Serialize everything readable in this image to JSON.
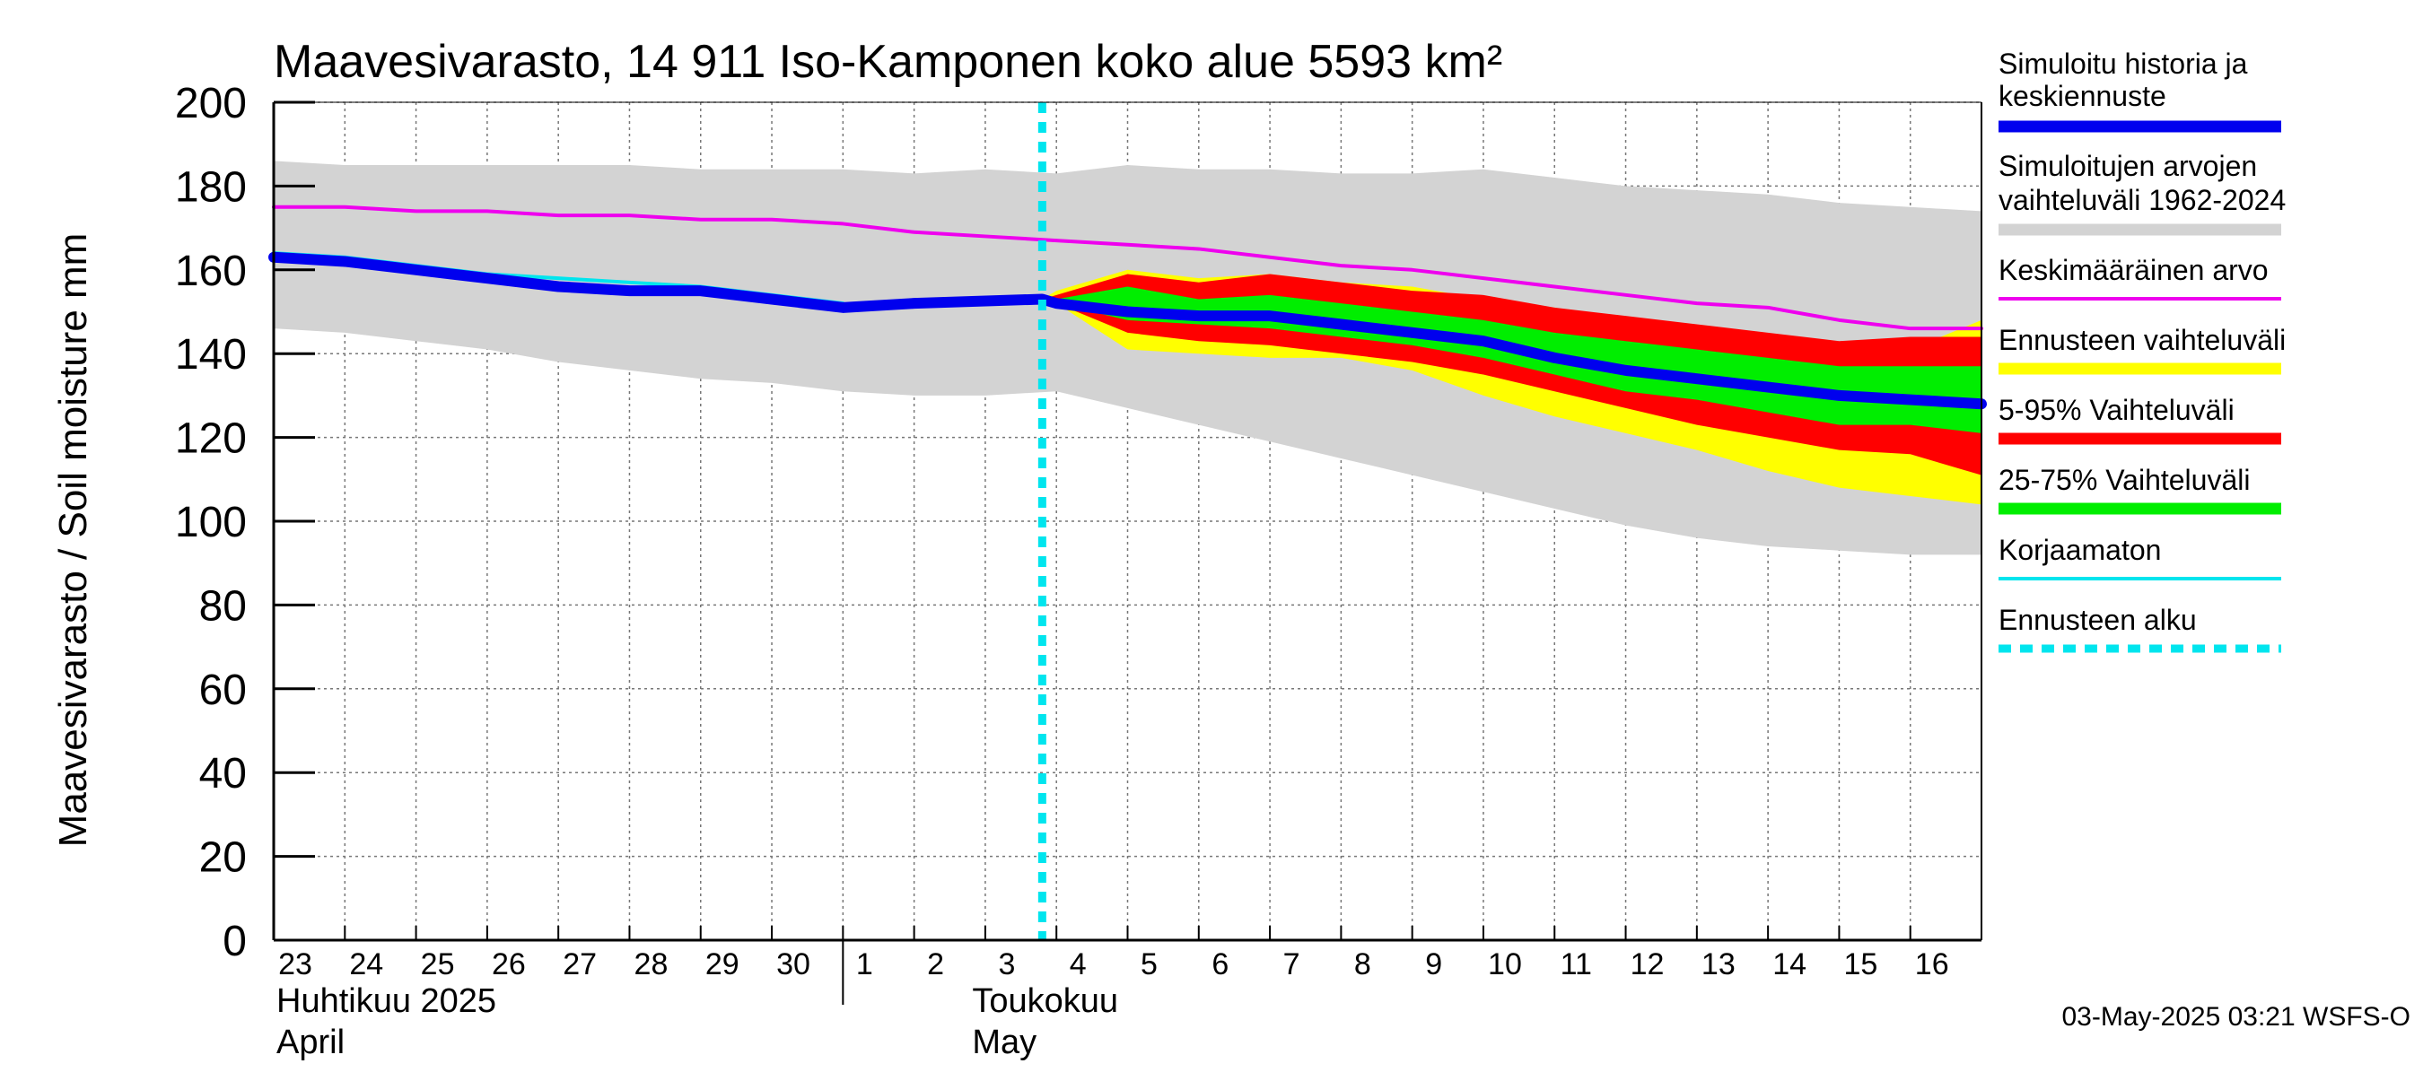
{
  "chart_data": {
    "type": "area",
    "title": "Maavesivarasto, 14 911 Iso-Kamponen koko alue 5593 km²",
    "ylabel": "Maavesivarasto / Soil moisture   mm",
    "ylim": [
      0,
      200
    ],
    "yticks": [
      0,
      20,
      40,
      60,
      80,
      100,
      120,
      140,
      160,
      180,
      200
    ],
    "x_start": "2025-04-23",
    "x_days": [
      0,
      24
    ],
    "day_labels": [
      "23",
      "24",
      "25",
      "26",
      "27",
      "28",
      "29",
      "30",
      "1",
      "2",
      "3",
      "4",
      "5",
      "6",
      "7",
      "8",
      "9",
      "10",
      "11",
      "12",
      "13",
      "14",
      "15",
      "16"
    ],
    "month_labels": [
      {
        "line1": "Huhtikuu  2025",
        "line2": "April"
      },
      {
        "line1": "Toukokuu",
        "line2": "May"
      }
    ],
    "month_separator_day": 8,
    "forecast_start_day": 10.8,
    "grid": true,
    "series": [
      {
        "name": "Simuloitujen arvojen vaihteluväli 1962-2024",
        "kind": "band",
        "color": "#d3d3d3",
        "x": [
          0,
          1,
          2,
          3,
          4,
          5,
          6,
          7,
          8,
          9,
          10,
          11,
          12,
          13,
          14,
          15,
          16,
          17,
          18,
          19,
          20,
          21,
          22,
          23,
          24
        ],
        "upper": [
          186,
          185,
          185,
          185,
          185,
          185,
          184,
          184,
          184,
          183,
          184,
          183,
          185,
          184,
          184,
          183,
          183,
          184,
          182,
          180,
          179,
          178,
          176,
          175,
          174
        ],
        "lower": [
          146,
          145,
          143,
          141,
          138,
          136,
          134,
          133,
          131,
          130,
          130,
          131,
          127,
          123,
          119,
          115,
          111,
          107,
          103,
          99,
          96,
          94,
          93,
          92,
          92
        ]
      },
      {
        "name": "Ennusteen vaihteluväli",
        "kind": "band",
        "color": "#ffff00",
        "x": [
          10.8,
          11,
          12,
          13,
          14,
          15,
          16,
          17,
          18,
          19,
          20,
          21,
          22,
          23,
          24
        ],
        "upper": [
          153,
          155,
          160,
          158,
          159,
          157,
          156,
          153,
          151,
          148,
          145,
          142,
          140,
          141,
          148
        ],
        "lower": [
          153,
          152,
          141,
          140,
          139,
          139,
          136,
          130,
          125,
          121,
          117,
          112,
          108,
          106,
          104
        ]
      },
      {
        "name": "5-95% Vaihteluväli",
        "kind": "band",
        "color": "#ff0000",
        "x": [
          10.8,
          11,
          12,
          13,
          14,
          15,
          16,
          17,
          18,
          19,
          20,
          21,
          22,
          23,
          24
        ],
        "upper": [
          153,
          154,
          159,
          157,
          159,
          157,
          155,
          154,
          151,
          149,
          147,
          145,
          143,
          144,
          144
        ],
        "lower": [
          153,
          152,
          145,
          143,
          142,
          140,
          138,
          135,
          131,
          127,
          123,
          120,
          117,
          116,
          111
        ]
      },
      {
        "name": "25-75% Vaihteluväli",
        "kind": "band",
        "color": "#00ee00",
        "x": [
          10.8,
          11,
          12,
          13,
          14,
          15,
          16,
          17,
          18,
          19,
          20,
          21,
          22,
          23,
          24
        ],
        "upper": [
          153,
          153,
          156,
          153,
          154,
          152,
          150,
          148,
          145,
          143,
          141,
          139,
          137,
          137,
          137
        ],
        "lower": [
          153,
          152,
          148,
          147,
          146,
          144,
          142,
          139,
          135,
          131,
          129,
          126,
          123,
          123,
          121
        ]
      },
      {
        "name": "Keskimääräinen arvo",
        "kind": "line",
        "color": "#ee00ee",
        "width": 4,
        "x": [
          0,
          1,
          2,
          3,
          4,
          5,
          6,
          7,
          8,
          9,
          10,
          11,
          12,
          13,
          14,
          15,
          16,
          17,
          18,
          19,
          20,
          21,
          22,
          23,
          24
        ],
        "y": [
          175,
          175,
          174,
          174,
          173,
          173,
          172,
          172,
          171,
          169,
          168,
          167,
          166,
          165,
          163,
          161,
          160,
          158,
          156,
          154,
          152,
          151,
          148,
          146,
          146
        ]
      },
      {
        "name": "Korjaamaton",
        "kind": "line",
        "color": "#00e5ee",
        "width": 4,
        "x": [
          0,
          1,
          2,
          3,
          4,
          5,
          6,
          7,
          8
        ],
        "y": [
          164,
          163,
          161,
          159,
          158,
          157,
          156,
          154,
          152
        ]
      },
      {
        "name": "Simuloitu historia ja keskiennuste",
        "kind": "line",
        "color": "#0000ee",
        "width": 12,
        "x": [
          0,
          1,
          2,
          3,
          4,
          5,
          6,
          7,
          8,
          9,
          10.8,
          11,
          12,
          13,
          14,
          15,
          16,
          17,
          18,
          19,
          20,
          21,
          22,
          23,
          24
        ],
        "y": [
          163,
          162,
          160,
          158,
          156,
          155,
          155,
          153,
          151,
          152,
          153,
          152,
          150,
          149,
          149,
          147,
          145,
          143,
          139,
          136,
          134,
          132,
          130,
          129,
          128
        ]
      }
    ],
    "legend": [
      {
        "label": "Simuloitu historia ja keskiennuste",
        "color": "#0000ee",
        "style": "thick"
      },
      {
        "label": "Simuloitujen arvojen vaihteluväli 1962-2024",
        "color": "#d3d3d3",
        "style": "thick"
      },
      {
        "label": "Keskimääräinen arvo",
        "color": "#ee00ee",
        "style": "thin"
      },
      {
        "label": "Ennusteen vaihteluväli",
        "color": "#ffff00",
        "style": "thick"
      },
      {
        "label": "5-95% Vaihteluväli",
        "color": "#ff0000",
        "style": "thick"
      },
      {
        "label": "25-75% Vaihteluväli",
        "color": "#00ee00",
        "style": "thick"
      },
      {
        "label": "Korjaamaton",
        "color": "#00e5ee",
        "style": "thin"
      },
      {
        "label": "Ennusteen alku",
        "color": "#00e5ee",
        "style": "dashed"
      }
    ],
    "footer": "03-May-2025 03:21 WSFS-O"
  }
}
